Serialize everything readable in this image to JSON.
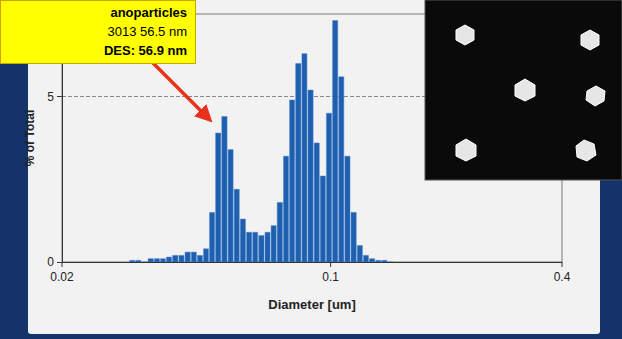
{
  "chart_data": {
    "type": "histogram",
    "xlabel": "Diameter [um]",
    "ylabel": "% of Total",
    "annotations": [
      "anoparticles",
      "3013 56.5 nm",
      "DES: 56.9 nm"
    ],
    "bins": [
      0.03,
      0.0311,
      0.0323,
      0.0335,
      0.0348,
      0.0361,
      0.0374,
      0.0388,
      0.0403,
      0.0418,
      0.0434,
      0.045,
      0.0467,
      0.0484,
      0.0502,
      0.0521,
      0.0541,
      0.0561,
      0.0582,
      0.0604,
      0.0627,
      0.065,
      0.0675,
      0.07,
      0.0726,
      0.0754,
      0.0782,
      0.0811,
      0.0842,
      0.0873,
      0.0906,
      0.094,
      0.0975,
      0.1012,
      0.105,
      0.1089,
      0.113,
      0.1173,
      0.1217,
      0.1262,
      0.131,
      0.1359,
      0.141,
      0.1463
    ],
    "values": [
      0.05,
      0.05,
      0.0,
      0.1,
      0.1,
      0.1,
      0.15,
      0.2,
      0.2,
      0.3,
      0.3,
      0.2,
      0.4,
      1.5,
      3.9,
      4.4,
      3.4,
      2.2,
      1.3,
      0.9,
      0.9,
      0.8,
      0.9,
      1.1,
      1.8,
      3.2,
      4.9,
      6.0,
      6.3,
      5.2,
      3.6,
      2.6,
      4.5,
      7.3,
      5.6,
      3.2,
      1.5,
      0.5,
      0.2,
      0.1,
      0.05,
      0.05,
      0.0
    ],
    "color": "#1f5fb0",
    "xlim": [
      0.02,
      0.4
    ],
    "xticks": [
      0.02,
      0.1,
      0.4
    ],
    "ylim": [
      0,
      7.5
    ],
    "yticks": [
      0,
      5
    ],
    "log": "x",
    "grid": true
  }
}
